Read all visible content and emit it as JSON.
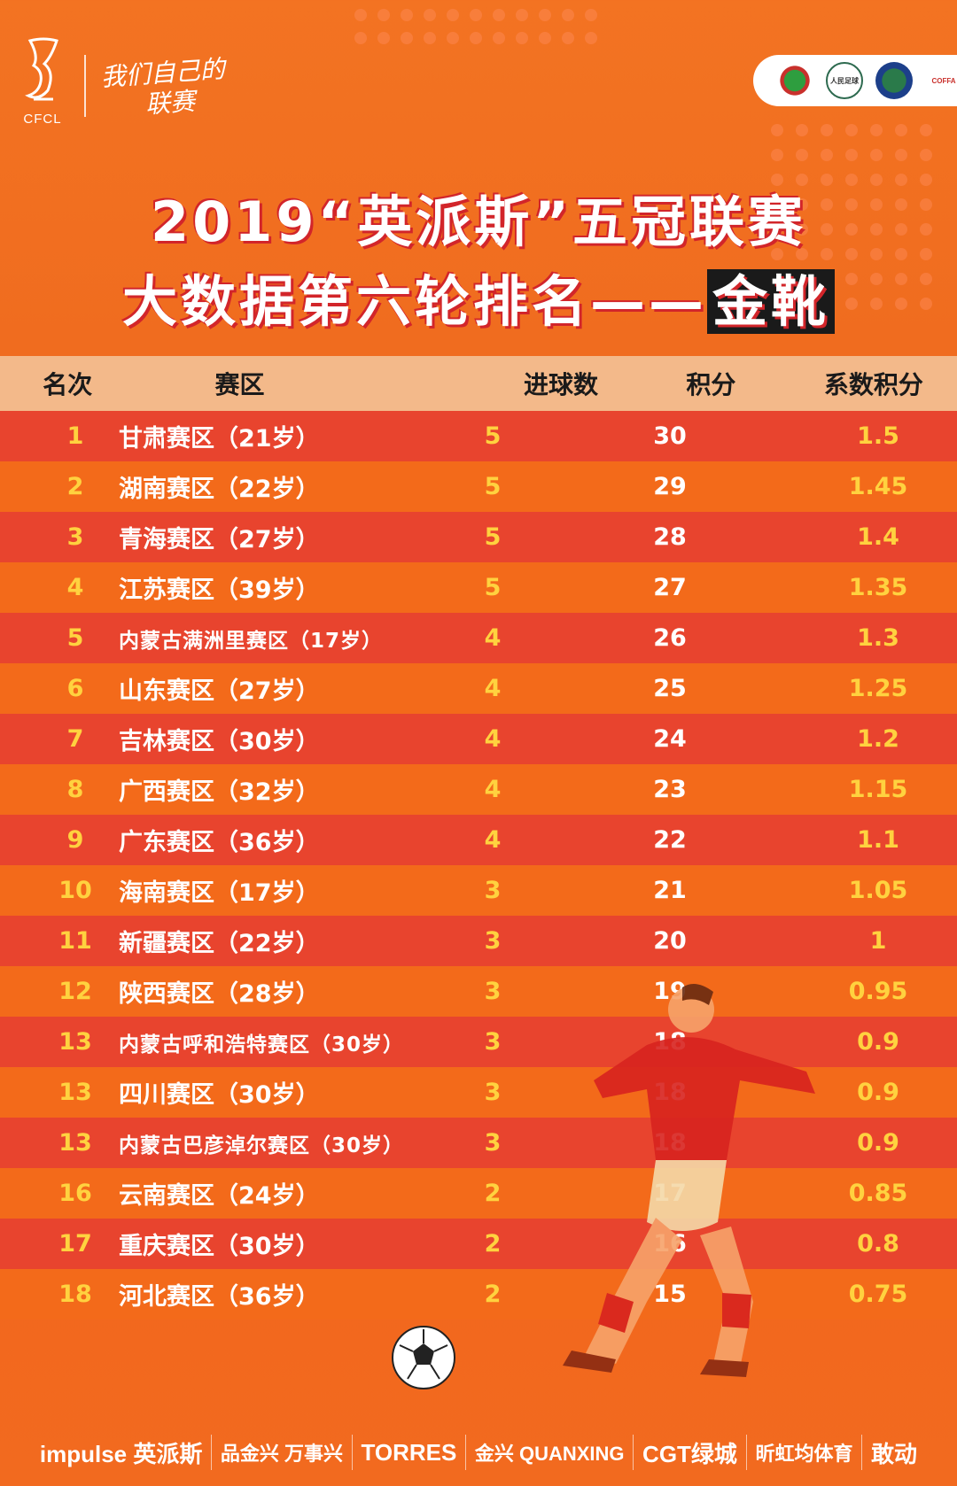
{
  "brand": {
    "abbr": "CFCL",
    "slogan_line1": "我们自己的",
    "slogan_line2": "联赛"
  },
  "partners": [
    {
      "icon": "football-association-logo",
      "label": ""
    },
    {
      "icon": "football-for-all-logo",
      "label": "人民足球 FOOTBALL FOR ALL"
    },
    {
      "icon": "amateur-league-logo",
      "label": ""
    },
    {
      "icon": "coffa-logo",
      "label": "COFFA"
    }
  ],
  "title": {
    "line1": "2019“英派斯”五冠联赛",
    "line2_main": "大数据第六轮排名——",
    "line2_highlight": "金靴"
  },
  "table": {
    "headers": [
      "名次",
      "赛区",
      "进球数",
      "积分",
      "系数积分"
    ],
    "rows": [
      {
        "rank": "1",
        "region": "甘肃赛区（21岁）",
        "goals": "5",
        "points": "30",
        "coef": "1.5"
      },
      {
        "rank": "2",
        "region": "湖南赛区（22岁）",
        "goals": "5",
        "points": "29",
        "coef": "1.45"
      },
      {
        "rank": "3",
        "region": "青海赛区（27岁）",
        "goals": "5",
        "points": "28",
        "coef": "1.4"
      },
      {
        "rank": "4",
        "region": "江苏赛区（39岁）",
        "goals": "5",
        "points": "27",
        "coef": "1.35"
      },
      {
        "rank": "5",
        "region": "内蒙古满洲里赛区（17岁）",
        "goals": "4",
        "points": "26",
        "coef": "1.3"
      },
      {
        "rank": "6",
        "region": "山东赛区（27岁）",
        "goals": "4",
        "points": "25",
        "coef": "1.25"
      },
      {
        "rank": "7",
        "region": "吉林赛区（30岁）",
        "goals": "4",
        "points": "24",
        "coef": "1.2"
      },
      {
        "rank": "8",
        "region": "广西赛区（32岁）",
        "goals": "4",
        "points": "23",
        "coef": "1.15"
      },
      {
        "rank": "9",
        "region": "广东赛区（36岁）",
        "goals": "4",
        "points": "22",
        "coef": "1.1"
      },
      {
        "rank": "10",
        "region": "海南赛区（17岁）",
        "goals": "3",
        "points": "21",
        "coef": "1.05"
      },
      {
        "rank": "11",
        "region": "新疆赛区（22岁）",
        "goals": "3",
        "points": "20",
        "coef": "1"
      },
      {
        "rank": "12",
        "region": "陕西赛区（28岁）",
        "goals": "3",
        "points": "19",
        "coef": "0.95"
      },
      {
        "rank": "13",
        "region": "内蒙古呼和浩特赛区（30岁）",
        "goals": "3",
        "points": "18",
        "coef": "0.9"
      },
      {
        "rank": "13",
        "region": "四川赛区（30岁）",
        "goals": "3",
        "points": "18",
        "coef": "0.9"
      },
      {
        "rank": "13",
        "region": "内蒙古巴彦淖尔赛区（30岁）",
        "goals": "3",
        "points": "18",
        "coef": "0.9"
      },
      {
        "rank": "16",
        "region": "云南赛区（24岁）",
        "goals": "2",
        "points": "17",
        "coef": "0.85"
      },
      {
        "rank": "17",
        "region": "重庆赛区（30岁）",
        "goals": "2",
        "points": "16",
        "coef": "0.8"
      },
      {
        "rank": "18",
        "region": "河北赛区（36岁）",
        "goals": "2",
        "points": "15",
        "coef": "0.75"
      }
    ]
  },
  "sponsors": [
    "impulse 英派斯",
    "品金兴 万事兴",
    "TORRES",
    "金兴 QUANXING",
    "CGT绿城",
    "昕虹均体育",
    "敢动"
  ],
  "colors": {
    "orange": "#f36a1a",
    "red_row": "#e8442e",
    "header_band": "#f3b98a",
    "yellow": "#ffd23f"
  }
}
